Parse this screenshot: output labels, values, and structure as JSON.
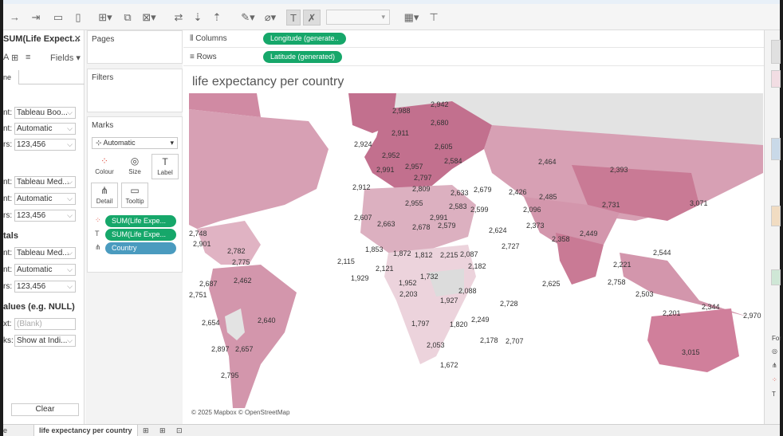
{
  "data_pane": {
    "title": "SUM(Life Expect...",
    "fields_label": "Fields",
    "tab_label": "ne",
    "section1": [
      {
        "label": "nt:",
        "value": "Tableau Boo..."
      },
      {
        "label": "nt:",
        "value": "Automatic"
      },
      {
        "label": "rs:",
        "value": "123,456"
      }
    ],
    "section2": [
      {
        "label": "nt:",
        "value": "Tableau Med..."
      },
      {
        "label": "nt:",
        "value": "Automatic"
      },
      {
        "label": "rs:",
        "value": "123,456"
      }
    ],
    "totals_heading": "tals",
    "section3": [
      {
        "label": "nt:",
        "value": "Tableau Med..."
      },
      {
        "label": "nt:",
        "value": "Automatic"
      },
      {
        "label": "rs:",
        "value": "123,456"
      }
    ],
    "null_heading": "alues (e.g. NULL)",
    "null_text": {
      "label": "xt:",
      "placeholder": "(Blank)"
    },
    "null_marks": {
      "label": "ks:",
      "value": "Show at Indi..."
    },
    "clear_label": "Clear"
  },
  "cards": {
    "pages": "Pages",
    "filters": "Filters",
    "marks": "Marks",
    "mark_type": "Automatic",
    "buttons": {
      "colour": "Colour",
      "size": "Size",
      "label": "Label",
      "detail": "Detail",
      "tooltip": "Tooltip"
    },
    "pills": [
      "SUM(Life Expe...",
      "SUM(Life Expe...",
      "Country"
    ]
  },
  "shelves": {
    "columns_label": "Columns",
    "columns_pill": "Longitude (generate..",
    "rows_label": "Rows",
    "rows_pill": "Latitude (generated)"
  },
  "view": {
    "title": "life expectancy per country",
    "credit": "© 2025 Mapbox © OpenStreetMap"
  },
  "right_panel": {
    "text": "For"
  },
  "bottom_tabs": {
    "left": "e",
    "active": "life expectancy per country"
  },
  "colors": {
    "accent_green": "#16a76a",
    "accent_blue": "#4a9bbf",
    "map_dark": "#c97a95",
    "map_light": "#ecd3dc",
    "no_data": "#dcdcdc"
  },
  "map_labels": [
    "2,988",
    "2,942",
    "2,680",
    "2,911",
    "2,924",
    "2,605",
    "2,952",
    "2,584",
    "2,991",
    "2,957",
    "2,797",
    "2,464",
    "2,393",
    "2,912",
    "2,809",
    "2,633",
    "2,679",
    "2,426",
    "2,485",
    "2,731",
    "3,071",
    "2,955",
    "2,583",
    "2,599",
    "2,096",
    "2,607",
    "2,663",
    "2,678",
    "2,579",
    "2,991",
    "2,624",
    "2,373",
    "2,358",
    "2,449",
    "2,748",
    "2,901",
    "2,782",
    "2,775",
    "1,853",
    "1,872",
    "1,812",
    "2,215",
    "2,087",
    "2,727",
    "2,544",
    "2,115",
    "2,121",
    "2,182",
    "2,221",
    "1,929",
    "1,732",
    "2,088",
    "2,625",
    "2,758",
    "2,687",
    "2,462",
    "1,952",
    "2,203",
    "1,927",
    "2,503",
    "2,751",
    "2,728",
    "2,344",
    "2,654",
    "2,640",
    "1,797",
    "1,820",
    "2,249",
    "2,201",
    "2,970",
    "2,178",
    "2,707",
    "2,053",
    "3,015",
    "2,897",
    "2,657",
    "1,672",
    "2,795"
  ]
}
